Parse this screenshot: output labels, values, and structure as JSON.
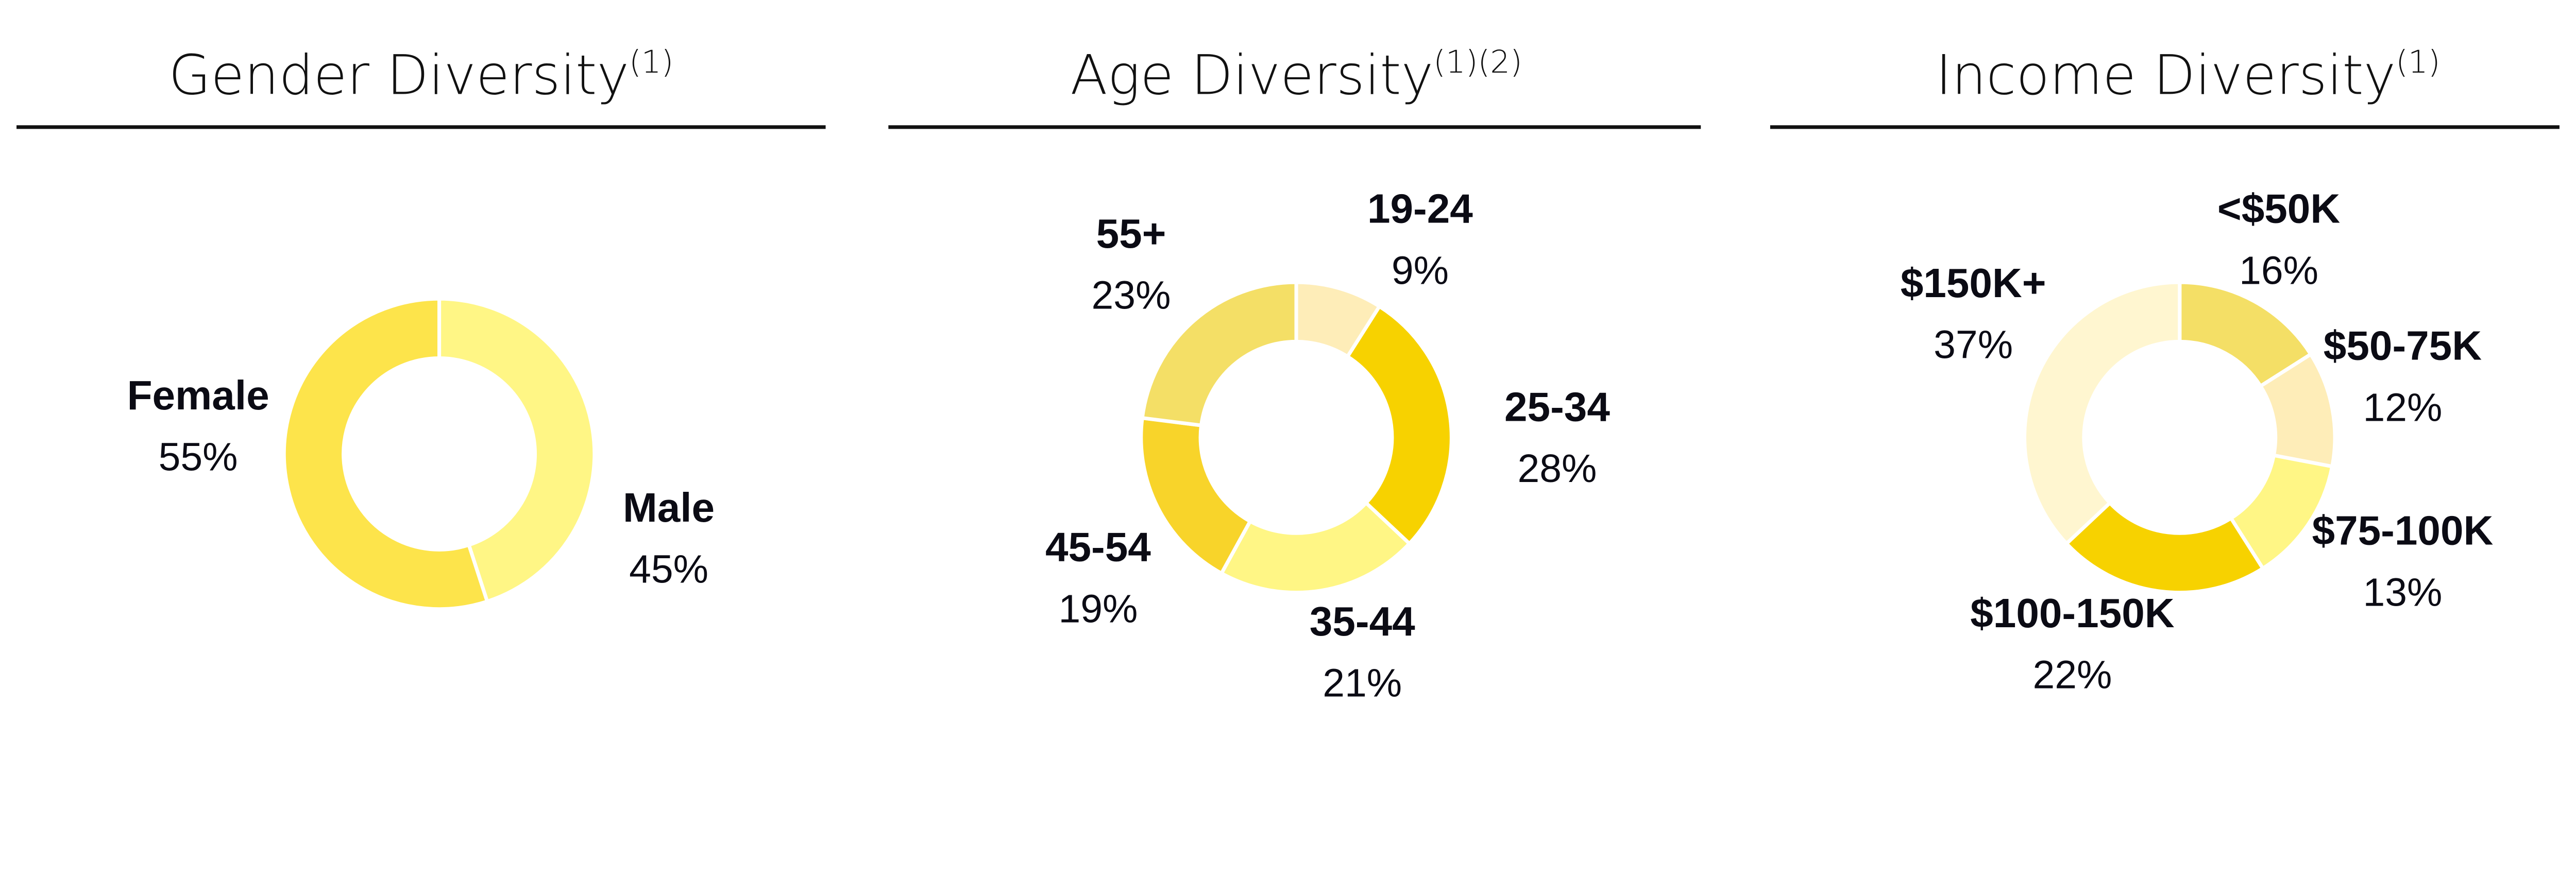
{
  "chart_data": [
    {
      "type": "pie",
      "title": "Gender Diversity",
      "title_sup": "(1)",
      "donut": true,
      "categories": [
        "Male",
        "Female"
      ],
      "values": [
        45,
        55
      ],
      "value_labels": [
        "45%",
        "55%"
      ],
      "colors": [
        "#FFF685",
        "#FDE44B"
      ]
    },
    {
      "type": "pie",
      "title": "Age Diversity",
      "title_sup": "(1)(2)",
      "donut": true,
      "categories": [
        "19-24",
        "25-34",
        "35-44",
        "45-54",
        "55+"
      ],
      "values": [
        9,
        28,
        21,
        19,
        23
      ],
      "value_labels": [
        "9%",
        "28%",
        "21%",
        "19%",
        "23%"
      ],
      "colors": [
        "#FEEDB8",
        "#F7D200",
        "#FFF685",
        "#F8D42A",
        "#F4DF66"
      ]
    },
    {
      "type": "pie",
      "title": "Income Diversity",
      "title_sup": "(1)",
      "donut": true,
      "categories": [
        "<$50K",
        "$50-75K",
        "$75-100K",
        "$100-150K",
        "$150K+"
      ],
      "values": [
        16,
        12,
        13,
        22,
        37
      ],
      "value_labels": [
        "16%",
        "12%",
        "13%",
        "22%",
        "37%"
      ],
      "colors": [
        "#F4DF66",
        "#FEEDB8",
        "#FFF685",
        "#F7D200",
        "#FFF6D0"
      ]
    }
  ]
}
